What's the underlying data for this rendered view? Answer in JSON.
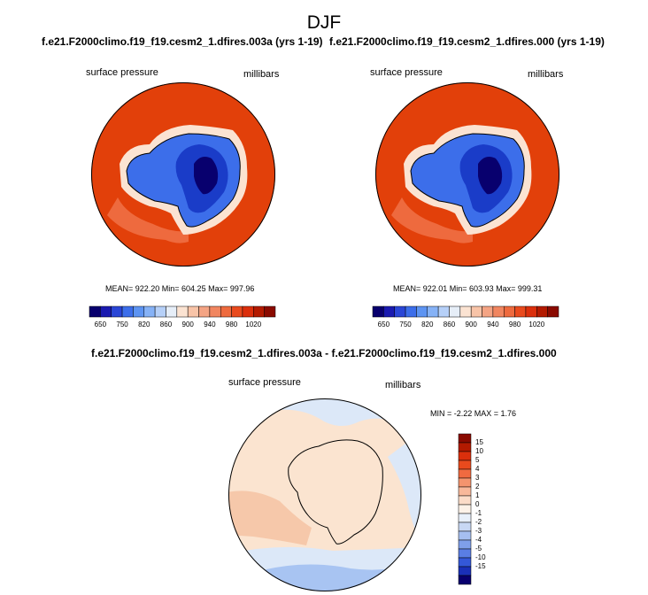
{
  "figure": {
    "title": "DJF",
    "diff_title": "f.e21.F2000climo.f19_f19.cesm2_1.dfires.003a - f.e21.F2000climo.f19_f19.cesm2_1.dfires.000"
  },
  "panels": [
    {
      "title": "f.e21.F2000climo.f19_f19.cesm2_1.dfires.003a (yrs 1-19)",
      "variable": "surface pressure",
      "units": "millibars",
      "stats": "MEAN= 922.20   Min= 604.25   Max= 997.96"
    },
    {
      "title": "f.e21.F2000climo.f19_f19.cesm2_1.dfires.000 (yrs 1-19)",
      "variable": "surface pressure",
      "units": "millibars",
      "stats": "MEAN= 922.01   Min= 603.93   Max= 999.31"
    }
  ],
  "diff_panel": {
    "variable": "surface pressure",
    "units": "millibars",
    "stats": "MIN =  -2.22 MAX =   1.76"
  },
  "colorbar_main": {
    "colors": [
      "#08006e",
      "#1a1ab0",
      "#2a46d6",
      "#3c6eea",
      "#5d94f2",
      "#86b2f6",
      "#b6d0f8",
      "#e6eef8",
      "#fbe3d2",
      "#f8c4a8",
      "#f4a484",
      "#f18660",
      "#ee6a3e",
      "#e94a1d",
      "#db2f0c",
      "#b31a00",
      "#8a0a00"
    ],
    "labels": [
      "650",
      "750",
      "820",
      "860",
      "900",
      "940",
      "980",
      "1020"
    ]
  },
  "colorbar_diff": {
    "colors": [
      "#8a0a00",
      "#b31a00",
      "#db2f0c",
      "#e94a1d",
      "#f06a40",
      "#f4946e",
      "#f8b89a",
      "#fbdcc8",
      "#fcf2e8",
      "#e8f0fa",
      "#c8d8f4",
      "#a6bff0",
      "#7f9fea",
      "#5a7ee4",
      "#3458d8",
      "#1a30b8",
      "#08006e"
    ],
    "labels": [
      "15",
      "10",
      "5",
      "4",
      "3",
      "2",
      "1",
      "0",
      "-1",
      "-2",
      "-3",
      "-4",
      "-5",
      "-10",
      "-15"
    ]
  },
  "map_colors": {
    "ocean_pressure": "#e2400a",
    "band_pressure": "#ee6a3e",
    "coast_light": "#fbe3d2",
    "ice_outer": "#3c6eea",
    "ice_mid": "#1a3cc8",
    "ice_inner": "#08006e",
    "diff_base": "#fbe4d0",
    "diff_warm": "#f6c8aa",
    "diff_blue_light": "#dce8f8",
    "diff_blue": "#a8c4f2",
    "coastline": "#000000"
  }
}
